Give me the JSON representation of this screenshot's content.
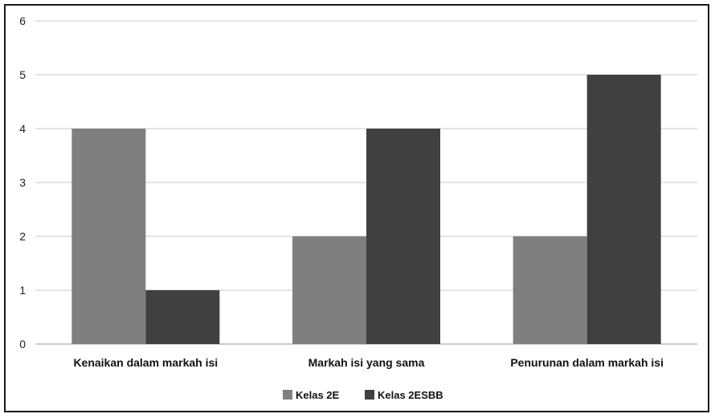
{
  "chart_data": {
    "type": "bar",
    "categories": [
      "Kenaikan dalam markah isi",
      "Markah isi yang sama",
      "Penurunan dalam markah isi"
    ],
    "series": [
      {
        "name": "Kelas 2E",
        "values": [
          4,
          2,
          2
        ],
        "color": "#7f7f7f"
      },
      {
        "name": "Kelas 2ESBB",
        "values": [
          1,
          4,
          5
        ],
        "color": "#404040"
      }
    ],
    "ylim": [
      0,
      6
    ],
    "yticks": [
      0,
      1,
      2,
      3,
      4,
      5,
      6
    ],
    "grid": true,
    "legend_position": "bottom",
    "title": "",
    "xlabel": "",
    "ylabel": ""
  }
}
